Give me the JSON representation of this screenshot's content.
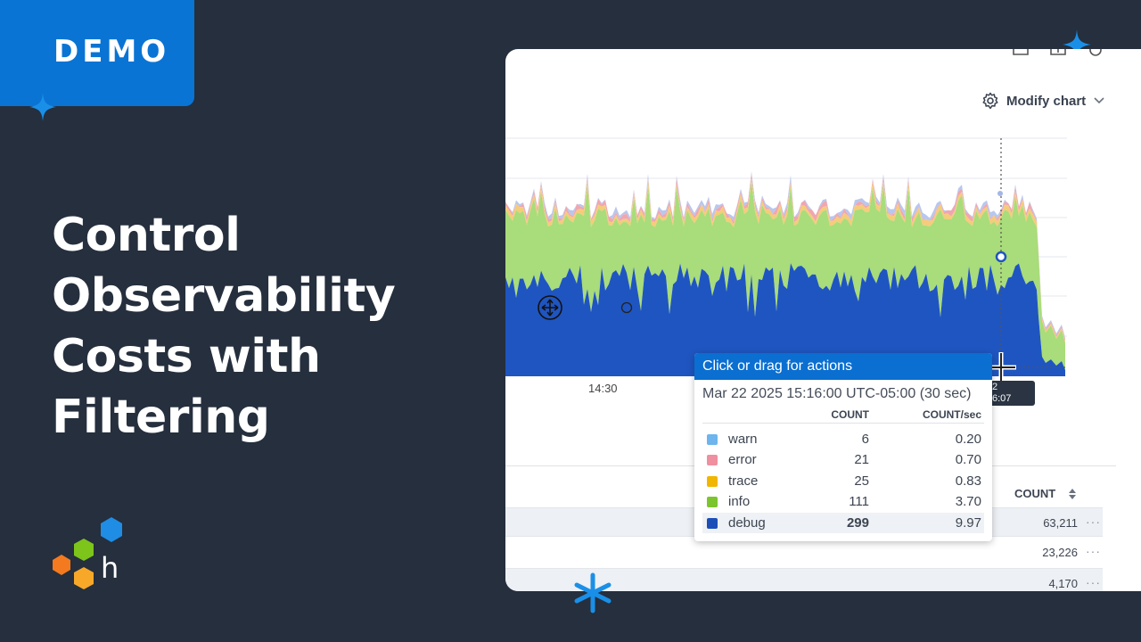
{
  "badge": {
    "label": "DEMO"
  },
  "headline": {
    "lines": [
      "Control",
      "Observability",
      "Costs with",
      "Filtering"
    ]
  },
  "logo": {
    "letter": "h"
  },
  "chart": {
    "modify_label": "Modify chart",
    "x_tick_label": "14:30",
    "cursor_tag_line1": "2",
    "cursor_tag_line2": "6:07"
  },
  "chart_data": {
    "type": "area",
    "stacked": true,
    "title": "",
    "xlabel": "",
    "ylabel": "",
    "x_ticks": [
      "14:30"
    ],
    "series": [
      {
        "name": "debug",
        "color": "#1f55c0"
      },
      {
        "name": "info",
        "color": "#a9dc7a"
      },
      {
        "name": "trace",
        "color": "#f5cc7a"
      },
      {
        "name": "error",
        "color": "#f0a6b0"
      },
      {
        "name": "warn",
        "color": "#b7c7ee"
      }
    ],
    "grid": true
  },
  "tooltip": {
    "header": "Click or drag for actions",
    "timestamp": "Mar 22 2025 15:16:00 UTC-05:00 (30 sec)",
    "col_count": "COUNT",
    "col_rate": "COUNT/sec",
    "rows": [
      {
        "name": "warn",
        "count": "6",
        "rate": "0.20",
        "color": "#6db5ec"
      },
      {
        "name": "error",
        "count": "21",
        "rate": "0.70",
        "color": "#ef8fa0"
      },
      {
        "name": "trace",
        "count": "25",
        "rate": "0.83",
        "color": "#f1b600"
      },
      {
        "name": "info",
        "count": "111",
        "rate": "3.70",
        "color": "#7cc52d"
      },
      {
        "name": "debug",
        "count": "299",
        "rate": "9.97",
        "color": "#1d4fb8"
      }
    ]
  },
  "table": {
    "header_count": "COUNT",
    "rows": [
      {
        "count": "63,211",
        "more": "···"
      },
      {
        "count": "23,226",
        "more": "···"
      },
      {
        "count": "4,170",
        "more": "···"
      }
    ]
  }
}
